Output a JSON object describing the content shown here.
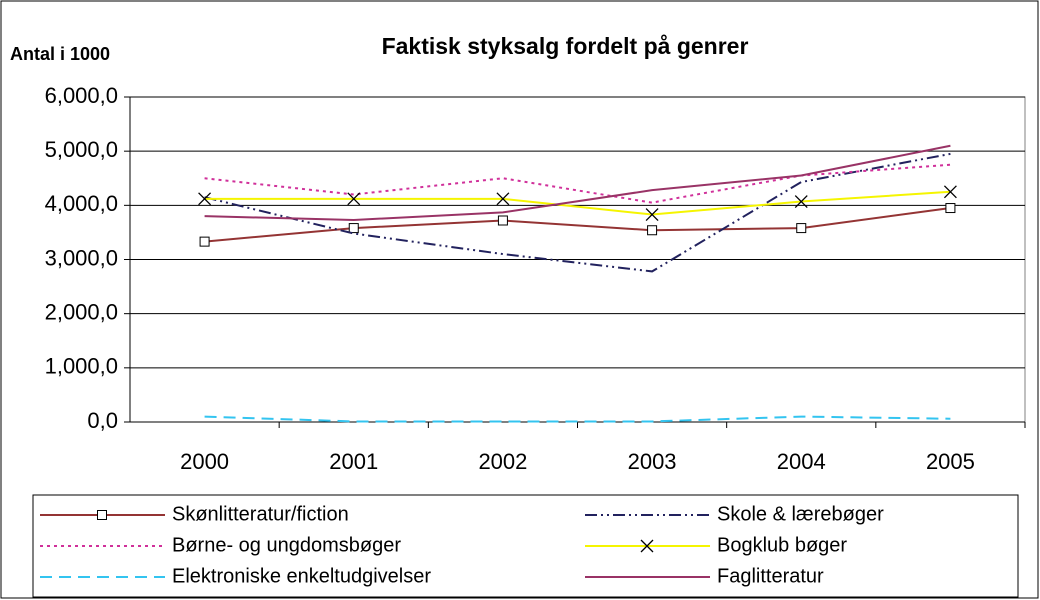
{
  "chart_data": {
    "type": "line",
    "title": "Faktisk styksalg fordelt på genrer",
    "y_label": "Antal i 1000",
    "categories": [
      "2000",
      "2001",
      "2002",
      "2003",
      "2004",
      "2005"
    ],
    "ylim": [
      0,
      6000
    ],
    "yticks": [
      {
        "value": 0,
        "label": "0,0"
      },
      {
        "value": 1000,
        "label": "1,000,0"
      },
      {
        "value": 2000,
        "label": "2,000,0"
      },
      {
        "value": 3000,
        "label": "3,000,0"
      },
      {
        "value": 4000,
        "label": "4,000,0"
      },
      {
        "value": 5000,
        "label": "5,000,0"
      },
      {
        "value": 6000,
        "label": "6,000,0"
      }
    ],
    "grid": true,
    "legend": "bottom",
    "series": [
      {
        "name": "Skønlitteratur/fiction",
        "color": "#943434",
        "dash": "solid",
        "marker": "square",
        "values": [
          3330,
          3580,
          3720,
          3540,
          3580,
          3950
        ]
      },
      {
        "name": "Skole & lærebøger",
        "color": "#22225e",
        "dash": "dashdotdot",
        "marker": "none",
        "values": [
          4150,
          3480,
          3100,
          2780,
          4430,
          4950
        ]
      },
      {
        "name": "Børne- og ungdomsbøger",
        "color": "#d0309a",
        "dash": "dot",
        "marker": "none",
        "values": [
          4500,
          4200,
          4500,
          4050,
          4550,
          4750
        ]
      },
      {
        "name": "Bogklub bøger",
        "color": "#f5f500",
        "dash": "solid",
        "marker": "x",
        "values": [
          4120,
          4120,
          4120,
          3830,
          4070,
          4250
        ]
      },
      {
        "name": "Elektroniske enkeltudgivelser",
        "color": "#33c4f0",
        "dash": "dash",
        "marker": "none",
        "values": [
          100,
          10,
          10,
          10,
          100,
          60
        ]
      },
      {
        "name": "Faglitteratur",
        "color": "#993366",
        "dash": "solid",
        "marker": "none",
        "values": [
          3800,
          3730,
          3870,
          4280,
          4550,
          5100
        ]
      }
    ]
  }
}
